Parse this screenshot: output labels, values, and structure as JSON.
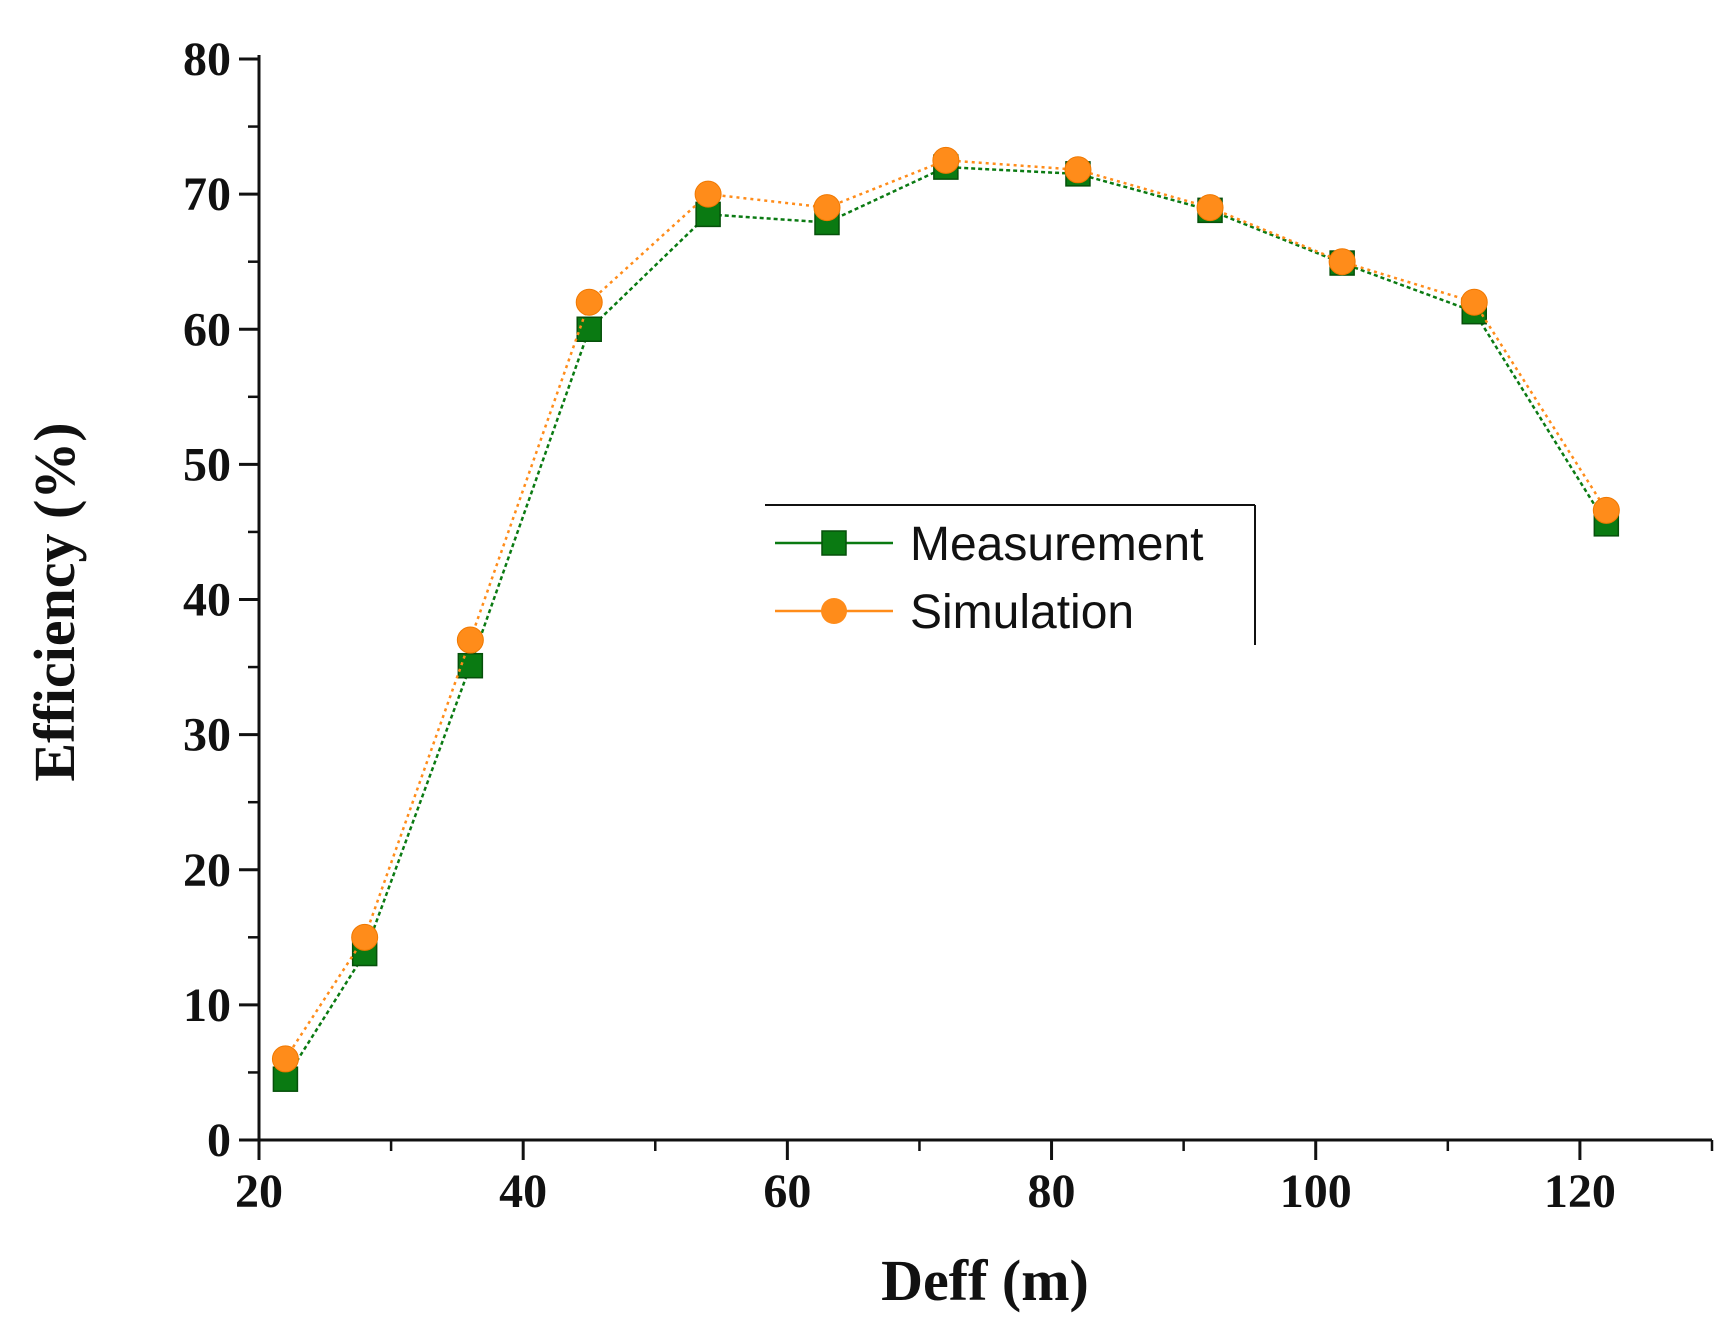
{
  "chart_data": {
    "type": "line",
    "title": "",
    "xlabel": "Deff (m)",
    "ylabel": "Efficiency (%)",
    "xlim": [
      20,
      130
    ],
    "ylim": [
      0,
      80
    ],
    "x_ticks": [
      20,
      40,
      60,
      80,
      100,
      120
    ],
    "y_ticks": [
      0,
      10,
      20,
      30,
      40,
      50,
      60,
      70,
      80
    ],
    "x": [
      22,
      28,
      36,
      45,
      54,
      63,
      72,
      82,
      92,
      102,
      112,
      122
    ],
    "series": [
      {
        "name": "Measurement",
        "marker": "square",
        "color": "#0a7a12",
        "values": [
          4.5,
          13.8,
          35.1,
          60.0,
          68.5,
          67.9,
          72.0,
          71.5,
          68.8,
          64.9,
          61.3,
          45.6
        ]
      },
      {
        "name": "Simulation",
        "marker": "circle",
        "color": "#ff8c1a",
        "values": [
          6.0,
          15.0,
          37.0,
          62.0,
          70.0,
          69.0,
          72.5,
          71.8,
          69.0,
          65.0,
          62.0,
          46.6
        ]
      }
    ],
    "legend_position": "center"
  }
}
